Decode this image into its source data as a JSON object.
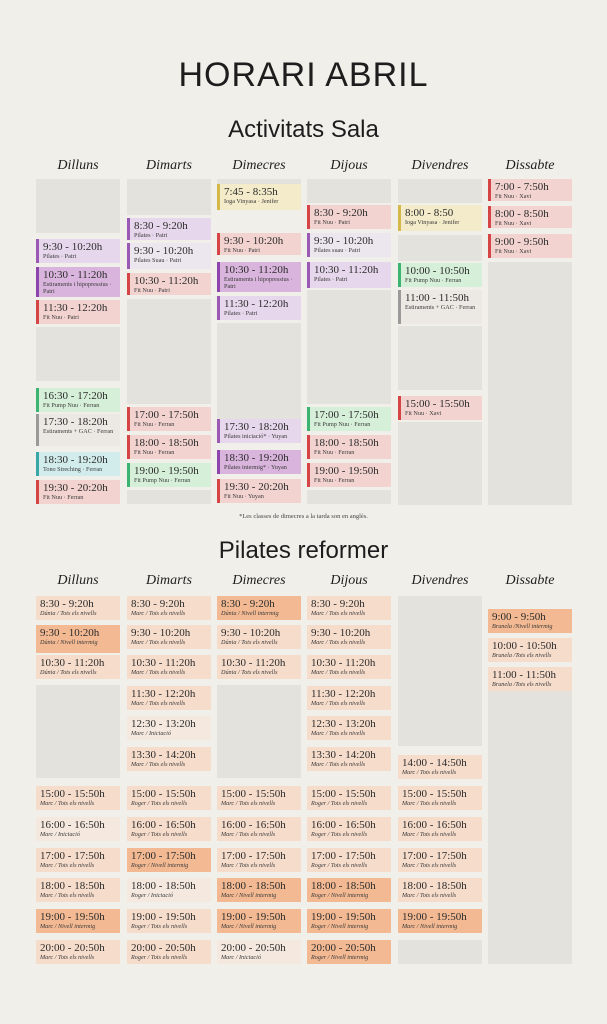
{
  "title": "HORARI ABRIL",
  "sala": {
    "subtitle": "Activitats Sala",
    "days": [
      "Dilluns",
      "Dimarts",
      "Dimecres",
      "Dijous",
      "Divendres",
      "Dissabte"
    ],
    "note": "*Les classes de dimecres a la tarda son en anglès.",
    "columns": [
      [
        {
          "time": "9:30 - 10:20h",
          "info": "Pilates · Patri",
          "color": "#e6d7ec",
          "border": "#9b59b6"
        },
        {
          "time": "10:30 - 11:20h",
          "info": "Estiraments i hipopressius · Patri",
          "color": "#d9b4dc",
          "border": "#8e44ad"
        },
        {
          "time": "11:30 - 12:20h",
          "info": "Fit Nuu · Patri",
          "color": "#f2d3d0",
          "border": "#d64545"
        },
        {
          "time": "16:30 - 17:20h",
          "info": "Fit Pump Nuu · Ferran",
          "color": "#d6efd8",
          "border": "#3cb371"
        },
        {
          "time": "17:30 - 18:20h",
          "info": "Estiraments + GAC · Ferran",
          "color": "#ece9e4",
          "border": "#9a9a9a"
        },
        {
          "time": "18:30 - 19:20h",
          "info": "Tono Streching · Ferran",
          "color": "#d2ecec",
          "border": "#3aa7a7"
        },
        {
          "time": "19:30 - 20:20h",
          "info": "Fit Nuu · Ferran",
          "color": "#f2d3d0",
          "border": "#d64545"
        }
      ],
      [
        {
          "time": "8:30 - 9:20h",
          "info": "Pilates · Patri",
          "color": "#e6d7ec",
          "border": "#9b59b6"
        },
        {
          "time": "9:30 - 10:20h",
          "info": "Pilates Suau · Patri",
          "color": "#ece6ee",
          "border": "#9b59b6"
        },
        {
          "time": "10:30 - 11:20h",
          "info": "Fit Nuu · Patri",
          "color": "#f2d3d0",
          "border": "#d64545"
        },
        {
          "time": "17:00 - 17:50h",
          "info": "Fit Nuu · Ferran",
          "color": "#f2d3d0",
          "border": "#d64545"
        },
        {
          "time": "18:00 - 18:50h",
          "info": "Fit Nuu · Ferran",
          "color": "#f2d3d0",
          "border": "#d64545"
        },
        {
          "time": "19:00 - 19:50h",
          "info": "Fit Pump Nuu · Ferran",
          "color": "#d6efd8",
          "border": "#3cb371"
        }
      ],
      [
        {
          "time": "7:45 - 8:35h",
          "info": "Ioga Vinyasa · Jenifer",
          "color": "#f3ebc9",
          "border": "#d4b84a"
        },
        {
          "time": "9:30 - 10:20h",
          "info": "Fit Nuu · Patri",
          "color": "#f2d3d0",
          "border": "#d64545"
        },
        {
          "time": "10:30 - 11:20h",
          "info": "Estiraments i hipopressius · Patri",
          "color": "#d9b4dc",
          "border": "#8e44ad"
        },
        {
          "time": "11:30 - 12:20h",
          "info": "Pilates · Patri",
          "color": "#e6d7ec",
          "border": "#9b59b6"
        },
        {
          "time": "17:30 - 18:20h",
          "info": "Pilates iniciació* · Yuyan",
          "color": "#e6d7ec",
          "border": "#9b59b6"
        },
        {
          "time": "18:30 - 19:20h",
          "info": "Pilates intermig* · Yuyan",
          "color": "#d9b4dc",
          "border": "#8e44ad"
        },
        {
          "time": "19:30 - 20:20h",
          "info": "Fit Nuu · Yuyan",
          "color": "#f2d3d0",
          "border": "#d64545"
        }
      ],
      [
        {
          "time": "8:30 - 9:20h",
          "info": "Fit Nuu · Patri",
          "color": "#f2d3d0",
          "border": "#d64545"
        },
        {
          "time": "9:30 - 10:20h",
          "info": "Pilates suau · Patri",
          "color": "#ece6ee",
          "border": "#9b59b6"
        },
        {
          "time": "10:30 - 11:20h",
          "info": "Pilates · Patri",
          "color": "#e6d7ec",
          "border": "#9b59b6"
        },
        {
          "time": "17:00 - 17:50h",
          "info": "Fit Pump Nuu · Ferran",
          "color": "#d6efd8",
          "border": "#3cb371"
        },
        {
          "time": "18:00 - 18:50h",
          "info": "Fit Nuu · Ferran",
          "color": "#f2d3d0",
          "border": "#d64545"
        },
        {
          "time": "19:00 - 19:50h",
          "info": "Fit Nuu · Ferran",
          "color": "#f2d3d0",
          "border": "#d64545"
        }
      ],
      [
        {
          "time": "8:00 - 8:50",
          "info": "Ioga Vinyasa · Jenifer",
          "color": "#f3ebc9",
          "border": "#d4b84a"
        },
        {
          "time": "10:00 - 10:50h",
          "info": "Fit Pump Nuu · Ferran",
          "color": "#d6efd8",
          "border": "#3cb371"
        },
        {
          "time": "11:00 - 11:50h",
          "info": "Estiraments + GAC · Ferran",
          "color": "#ece9e4",
          "border": "#9a9a9a"
        },
        {
          "time": "15:00 - 15:50h",
          "info": "Fit Nuu · Xavi",
          "color": "#f2d3d0",
          "border": "#d64545"
        }
      ],
      [
        {
          "time": "7:00 - 7:50h",
          "info": "Fit Nuu · Xavi",
          "color": "#f2d3d0",
          "border": "#d64545"
        },
        {
          "time": "8:00 - 8:50h",
          "info": "Fit Nuu · Xavi",
          "color": "#f2d3d0",
          "border": "#d64545"
        },
        {
          "time": "9:00 - 9:50h",
          "info": "Fit Nuu · Xavi",
          "color": "#f2d3d0",
          "border": "#d64545"
        }
      ]
    ]
  },
  "reformer": {
    "subtitle": "Pilates reformer",
    "days": [
      "Dilluns",
      "Dimarts",
      "Dimecres",
      "Dijous",
      "Divendres",
      "Dissabte"
    ],
    "columns": [
      [
        {
          "time": "8:30 - 9:20h",
          "info": "Dúnia / Tots els nivells",
          "color": "#f6dccb"
        },
        {
          "time": "9:30 - 10:20h",
          "info": "Dúnia / Nivell intermig",
          "color": "#f2b993"
        },
        {
          "time": "10:30 - 11:20h",
          "info": "Dúnia / Tots els nivells",
          "color": "#f6dccb"
        },
        {
          "time": "15:00 - 15:50h",
          "info": "Marc / Tots els nivells",
          "color": "#f6dccb"
        },
        {
          "time": "16:00 - 16:50h",
          "info": "Marc / Iniciació",
          "color": "#f4e8df"
        },
        {
          "time": "17:00 - 17:50h",
          "info": "Marc / Tots els nivells",
          "color": "#f6dccb"
        },
        {
          "time": "18:00 - 18:50h",
          "info": "Marc / Tots els nivells",
          "color": "#f6dccb"
        },
        {
          "time": "19:00 - 19:50h",
          "info": "Marc / Nivell intermig",
          "color": "#f2b993"
        },
        {
          "time": "20:00 - 20:50h",
          "info": "Marc / Tots els nivells",
          "color": "#f6dccb"
        }
      ],
      [
        {
          "time": "8:30 - 9:20h",
          "info": "Marc / Tots els nivells",
          "color": "#f6dccb"
        },
        {
          "time": "9:30 - 10:20h",
          "info": "Marc / Tots els nivells",
          "color": "#f6dccb"
        },
        {
          "time": "10:30 - 11:20h",
          "info": "Marc / Tots els nivells",
          "color": "#f6dccb"
        },
        {
          "time": "11:30 - 12:20h",
          "info": "Marc / Tots els nivells",
          "color": "#f6dccb"
        },
        {
          "time": "12:30 - 13:20h",
          "info": "Marc / Iniciació",
          "color": "#f4e8df"
        },
        {
          "time": "13:30 - 14:20h",
          "info": "Marc / Tots els nivells",
          "color": "#f6dccb"
        },
        {
          "time": "15:00 - 15:50h",
          "info": "Roger / Tots els nivells",
          "color": "#f6dccb"
        },
        {
          "time": "16:00 - 16:50h",
          "info": "Roger / Tots els nivells",
          "color": "#f6dccb"
        },
        {
          "time": "17:00 - 17:50h",
          "info": "Roger / Nivell intermig",
          "color": "#f2b993"
        },
        {
          "time": "18:00 - 18:50h",
          "info": "Roger / Iniciació",
          "color": "#f4e8df"
        },
        {
          "time": "19:00 - 19:50h",
          "info": "Roger / Tots els nivells",
          "color": "#f6dccb"
        },
        {
          "time": "20:00 - 20:50h",
          "info": "Roger / Tots els nivells",
          "color": "#f6dccb"
        }
      ],
      [
        {
          "time": "8:30 - 9:20h",
          "info": "Dúnia / Nivell intermig",
          "color": "#f2b993"
        },
        {
          "time": "9:30 - 10:20h",
          "info": "Dúnia / Tots els nivells",
          "color": "#f6dccb"
        },
        {
          "time": "10:30 - 11:20h",
          "info": "Dúnia / Tots els nivells",
          "color": "#f6dccb"
        },
        {
          "time": "15:00 - 15:50h",
          "info": "Marc / Tots els nivells",
          "color": "#f6dccb"
        },
        {
          "time": "16:00 - 16:50h",
          "info": "Marc / Tots els nivells",
          "color": "#f6dccb"
        },
        {
          "time": "17:00 - 17:50h",
          "info": "Marc / Tots els nivells",
          "color": "#f6dccb"
        },
        {
          "time": "18:00 - 18:50h",
          "info": "Marc / Nivell intermig",
          "color": "#f2b993"
        },
        {
          "time": "19:00 - 19:50h",
          "info": "Marc / Nivell intermig",
          "color": "#f2b993"
        },
        {
          "time": "20:00 - 20:50h",
          "info": "Marc / Iniciació",
          "color": "#f4e8df"
        }
      ],
      [
        {
          "time": "8:30 - 9:20h",
          "info": "Marc / Tots els nivells",
          "color": "#f6dccb"
        },
        {
          "time": "9:30 - 10:20h",
          "info": "Marc / Tots els nivells",
          "color": "#f6dccb"
        },
        {
          "time": "10:30 - 11:20h",
          "info": "Marc / Tots els nivells",
          "color": "#f6dccb"
        },
        {
          "time": "11:30 - 12:20h",
          "info": "Marc / Tots els nivells",
          "color": "#f6dccb"
        },
        {
          "time": "12:30 - 13:20h",
          "info": "Marc / Tots els nivells",
          "color": "#f6dccb"
        },
        {
          "time": "13:30 - 14:20h",
          "info": "Marc / Tots els nivells",
          "color": "#f6dccb"
        },
        {
          "time": "15:00 - 15:50h",
          "info": "Roger / Tots els nivells",
          "color": "#f6dccb"
        },
        {
          "time": "16:00 - 16:50h",
          "info": "Roger / Tots els nivells",
          "color": "#f6dccb"
        },
        {
          "time": "17:00 - 17:50h",
          "info": "Roger / Tots els nivells",
          "color": "#f6dccb"
        },
        {
          "time": "18:00 - 18:50h",
          "info": "Roger / Nivell intermig",
          "color": "#f2b993"
        },
        {
          "time": "19:00 - 19:50h",
          "info": "Roger / Nivell intermig",
          "color": "#f2b993"
        },
        {
          "time": "20:00 - 20:50h",
          "info": "Roger / Nivell intermig",
          "color": "#f2b993"
        }
      ],
      [
        {
          "time": "14:00 - 14:50h",
          "info": "Marc / Tots els nivells",
          "color": "#f6dccb"
        },
        {
          "time": "15:00 - 15:50h",
          "info": "Marc / Tots els nivells",
          "color": "#f6dccb"
        },
        {
          "time": "16:00 - 16:50h",
          "info": "Marc / Tots els nivells",
          "color": "#f6dccb"
        },
        {
          "time": "17:00 - 17:50h",
          "info": "Marc / Tots els nivells",
          "color": "#f6dccb"
        },
        {
          "time": "18:00 - 18:50h",
          "info": "Marc / Tots els nivells",
          "color": "#f6dccb"
        },
        {
          "time": "19:00 - 19:50h",
          "info": "Marc / Nivell intermig",
          "color": "#f2b993"
        }
      ],
      [
        {
          "time": "9:00 - 9:50h",
          "info": "Brunela /Nivell intermig",
          "color": "#f2b993"
        },
        {
          "time": "10:00 - 10:50h",
          "info": "Brunela /Tots els nivells",
          "color": "#f6dccb"
        },
        {
          "time": "11:00 - 11:50h",
          "info": "Brunela /Tots els nivells",
          "color": "#f6dccb"
        }
      ]
    ]
  }
}
